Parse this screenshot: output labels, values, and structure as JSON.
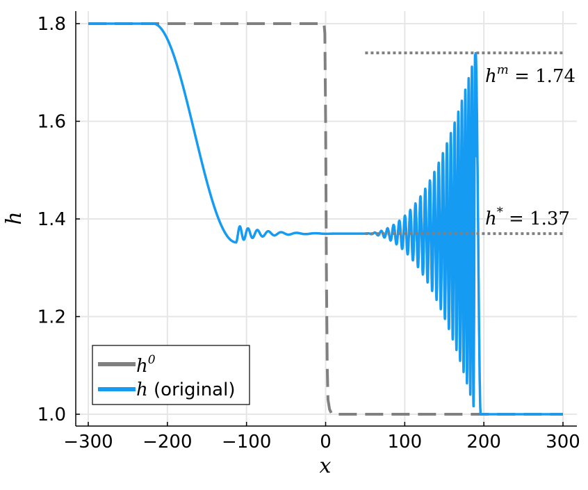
{
  "chart_data": {
    "type": "line",
    "xlabel": "x",
    "ylabel": "h",
    "xlim": [
      -300,
      300
    ],
    "ylim": [
      1.0,
      1.8
    ],
    "xticks": [
      -300,
      -200,
      -100,
      0,
      100,
      200,
      300
    ],
    "xtick_labels": [
      "−300",
      "−200",
      "−100",
      "0",
      "100",
      "200",
      "300"
    ],
    "yticks": [
      1.0,
      1.2,
      1.4,
      1.6,
      1.8
    ],
    "ytick_labels": [
      "1.0",
      "1.2",
      "1.4",
      "1.6",
      "1.8"
    ],
    "grid": true,
    "legend_position": "bottom-left",
    "series": [
      {
        "name": "h^0",
        "color": "#808080",
        "style": "dashed",
        "x": [
          -300,
          -2,
          -1,
          0,
          1,
          2,
          3,
          5,
          8,
          300
        ],
        "y": [
          1.8,
          1.8,
          1.78,
          1.6,
          1.3,
          1.1,
          1.03,
          1.01,
          1.0,
          1.0
        ]
      },
      {
        "name": "h (original)",
        "color": "#159BF2",
        "style": "solid",
        "x": [
          -300,
          -220,
          -205,
          -190,
          -160,
          -130,
          -118,
          -110,
          -100,
          -90,
          -70,
          -40,
          -10,
          20,
          60,
          80,
          100,
          120,
          140,
          160,
          180,
          188,
          189,
          190,
          192,
          195,
          200,
          300
        ],
        "y": [
          1.8,
          1.8,
          1.79,
          1.73,
          1.58,
          1.43,
          1.38,
          1.355,
          1.385,
          1.36,
          1.376,
          1.371,
          1.37,
          1.37,
          1.37,
          1.37,
          1.37,
          1.37,
          1.37,
          1.37,
          1.37,
          1.37,
          1.74,
          1.5,
          1.15,
          1.02,
          1.0,
          1.0
        ],
        "oscillation": {
          "trailing": {
            "x_start": -113,
            "x_end": 10,
            "initial_amplitude": 0.017,
            "wavelength": 9.0
          },
          "leading": {
            "x_start": 45,
            "x_end": 190,
            "min_amplitude": 0.37,
            "max_amplitude": 0.37,
            "wavelength": 6.0
          }
        }
      }
    ],
    "reference_lines": [
      {
        "y": 1.74,
        "x_range": [
          50,
          300
        ],
        "color": "#808080",
        "style": "dotted"
      },
      {
        "y": 1.37,
        "x_range": [
          50,
          300
        ],
        "color": "#808080",
        "style": "dotted"
      }
    ],
    "annotations": [
      {
        "symbol": "h",
        "superscript": "m",
        "text": " = 1.74"
      },
      {
        "symbol": "h",
        "superscript": "*",
        "text": " = 1.37"
      }
    ],
    "legend": [
      {
        "symbol": "h",
        "superscript": "0",
        "text": ""
      },
      {
        "symbol": "h",
        "superscript": "",
        "text": " (original)"
      }
    ]
  }
}
